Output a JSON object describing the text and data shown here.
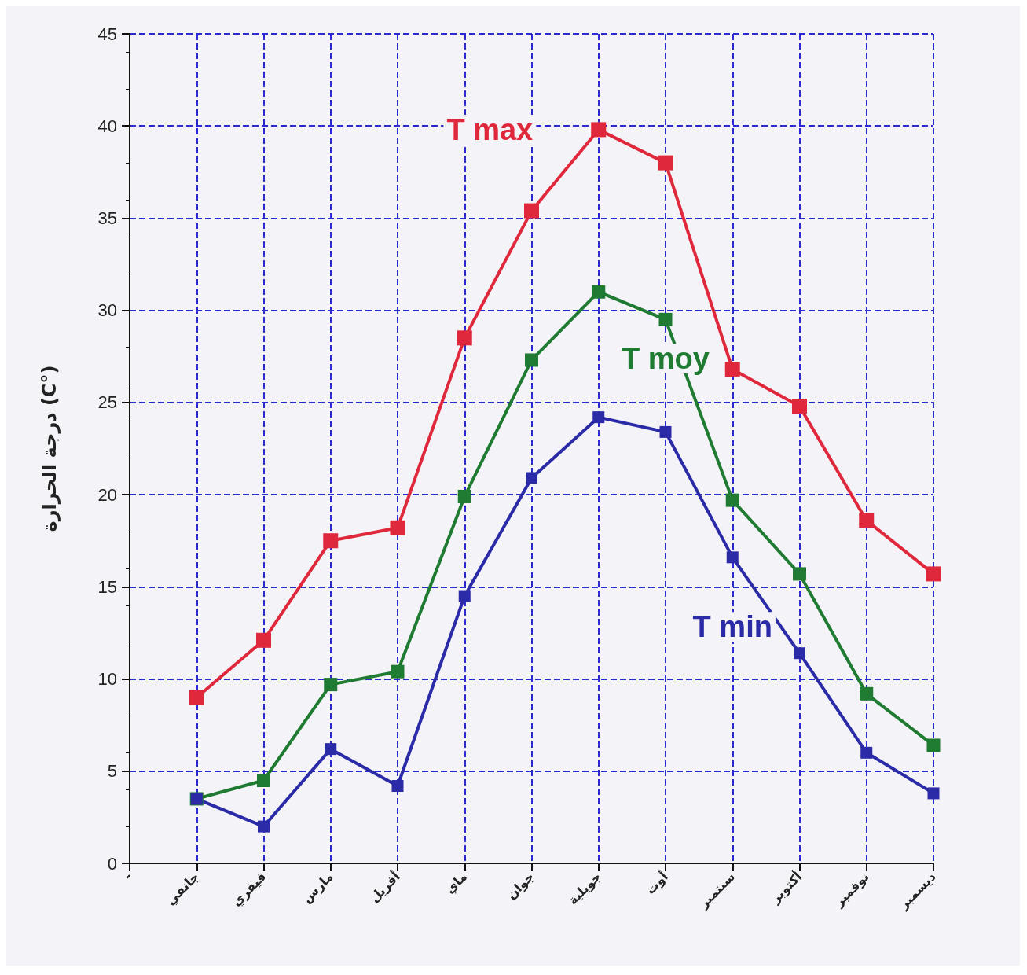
{
  "chart_data": {
    "type": "line",
    "ylabel": "درجة الحرارة (C°)",
    "categories": [
      "-",
      "جانفي",
      "فيفري",
      "مارس",
      "أفريل",
      "ماي",
      "جوان",
      "جويلية",
      "أوت",
      "سبتمبر",
      "أكتوبر",
      "نوفمبر",
      "ديسمبر"
    ],
    "series": [
      {
        "name": "T max",
        "color": "#e0283c",
        "values": [
          null,
          9,
          12.1,
          17.5,
          18.2,
          28.5,
          35.4,
          39.8,
          38,
          26.8,
          24.8,
          18.6,
          15.7
        ]
      },
      {
        "name": "T moy",
        "color": "#1f7a32",
        "values": [
          null,
          3.5,
          4.5,
          9.7,
          10.4,
          19.9,
          27.3,
          31,
          29.5,
          19.7,
          15.7,
          9.2,
          6.4
        ]
      },
      {
        "name": "T min",
        "color": "#2b2ba8",
        "values": [
          null,
          3.5,
          2,
          6.2,
          4.2,
          14.5,
          20.9,
          24.2,
          23.4,
          16.6,
          11.4,
          6,
          3.8
        ]
      }
    ],
    "ylim": [
      0,
      45
    ],
    "yticks": [
      0,
      5,
      10,
      15,
      20,
      25,
      30,
      35,
      40,
      45
    ],
    "grid": true,
    "marker": "square",
    "line_style": "solid",
    "legend": false
  }
}
